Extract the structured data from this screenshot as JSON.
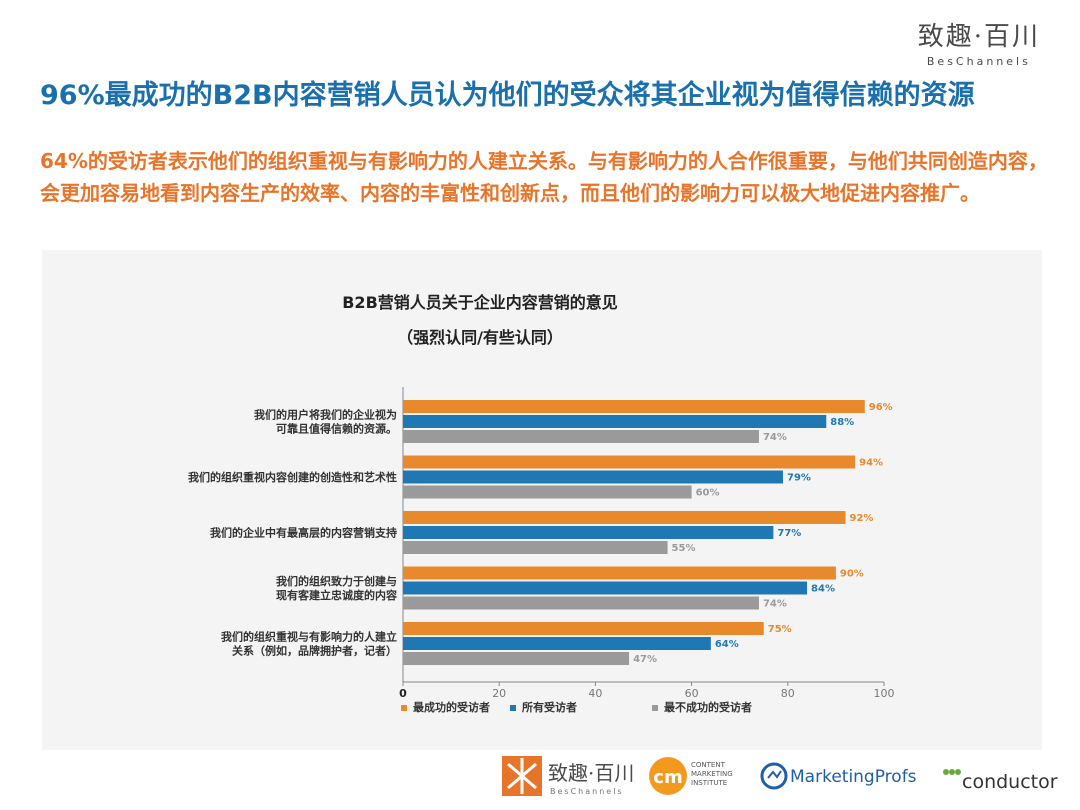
{
  "brand": {
    "cn": "致趣·百川",
    "en": "BesChannels"
  },
  "headline": "96%最成功的B2B内容营销人员认为他们的受众将其企业视为值得信赖的资源",
  "subtext": "64%的受访者表示他们的组织重视与有影响力的人建立关系。与有影响力的人合作很重要，与他们共同创造内容，会更加容易地看到内容生产的效率、内容的丰富性和创新点，而且他们的影响力可以极大地促进内容推广。",
  "chart_data": {
    "type": "bar",
    "orientation": "horizontal",
    "title": "B2B营销人员关于企业内容营销的意见",
    "subtitle": "（强烈认同/有些认同）",
    "categories": [
      [
        "我们的用户将我们的企业视为",
        "可靠且值得信赖的资源。"
      ],
      [
        "我们的组织重视内容创建的创造性和艺术性"
      ],
      [
        "我们的企业中有最高层的内容营销支持"
      ],
      [
        "我们的组织致力于创建与",
        "现有客建立忠诚度的内容"
      ],
      [
        "我们的组织重视与有影响力的人建立",
        "关系（例如，品牌拥护者，记者）"
      ]
    ],
    "series": [
      {
        "name": "最成功的受访者",
        "color": "#e8892b",
        "values": [
          96,
          94,
          92,
          90,
          75
        ]
      },
      {
        "name": "所有受访者",
        "color": "#1f78b4",
        "values": [
          88,
          79,
          77,
          84,
          64
        ]
      },
      {
        "name": "最不成功的受访者",
        "color": "#9a9a9a",
        "values": [
          74,
          60,
          55,
          74,
          47
        ]
      }
    ],
    "value_suffix": "%",
    "xlim": [
      0,
      100
    ],
    "xticks": [
      0,
      20,
      40,
      60,
      80,
      100
    ],
    "legend_position": "bottom",
    "grid": false
  },
  "logos": {
    "beschannels": {
      "cn": "致趣·百川",
      "en": "BesChannels"
    },
    "cmi": {
      "mark": "cm",
      "line1": "CONTENT",
      "line2": "MARKETING",
      "line3": "INSTITUTE"
    },
    "marketingprofs": "MarketingProfs",
    "conductor": "conductor"
  }
}
